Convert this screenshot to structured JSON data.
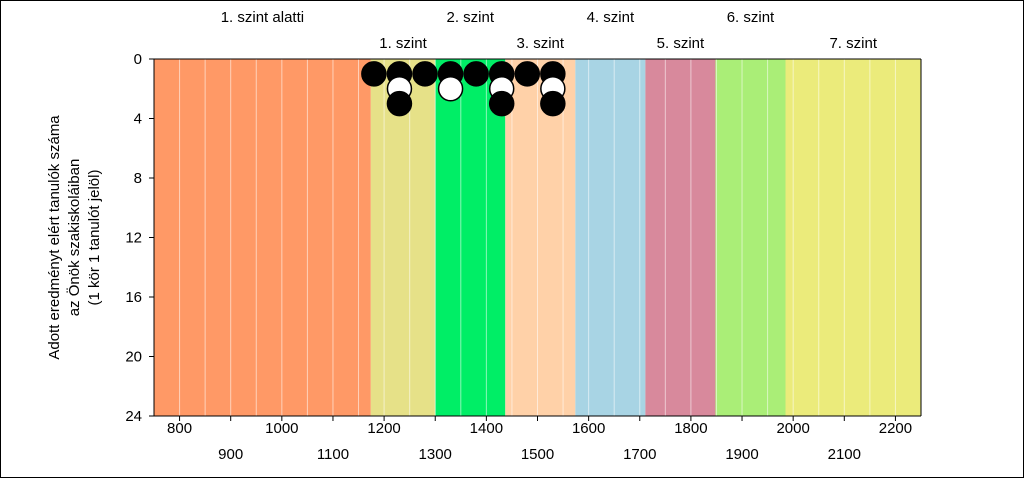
{
  "chart_data": {
    "type": "scatter",
    "ylabel_lines": [
      "Adott eredményt elért tanulók száma",
      "az Önök szakiskoláiban",
      "(1 kör 1 tanulót jelöl)"
    ],
    "xlim": [
      750,
      2250
    ],
    "ylim": [
      0,
      24
    ],
    "y_inverted": true,
    "y_ticks": [
      0,
      4,
      8,
      12,
      16,
      20,
      24
    ],
    "x_ticks_upper": [
      800,
      1000,
      1200,
      1400,
      1600,
      1800,
      2000,
      2200
    ],
    "x_ticks_lower": [
      900,
      1100,
      1300,
      1500,
      1700,
      1900,
      2100
    ],
    "levels": [
      {
        "label": "1. szint alatti",
        "from": 750,
        "to": 1174,
        "color": "#FF9966",
        "row": "top"
      },
      {
        "label": "1. szint",
        "from": 1174,
        "to": 1300,
        "color": "#E6E188",
        "row": "bottom"
      },
      {
        "label": "2. szint",
        "from": 1300,
        "to": 1437,
        "color": "#00EE66",
        "row": "top"
      },
      {
        "label": "3. szint",
        "from": 1437,
        "to": 1574,
        "color": "#FFD1A8",
        "row": "bottom"
      },
      {
        "label": "4. szint",
        "from": 1574,
        "to": 1711,
        "color": "#A8D4E4",
        "row": "top"
      },
      {
        "label": "5. szint",
        "from": 1711,
        "to": 1848,
        "color": "#D8899C",
        "row": "bottom"
      },
      {
        "label": "6. szint",
        "from": 1848,
        "to": 1985,
        "color": "#AAEE77",
        "row": "top"
      },
      {
        "label": "7. szint",
        "from": 1985,
        "to": 2250,
        "color": "#EBEB7B",
        "row": "bottom"
      }
    ],
    "points": [
      {
        "x": 1180,
        "y": 1,
        "fill": "black"
      },
      {
        "x": 1230,
        "y": 1,
        "fill": "black"
      },
      {
        "x": 1230,
        "y": 2,
        "fill": "white"
      },
      {
        "x": 1230,
        "y": 3,
        "fill": "black"
      },
      {
        "x": 1280,
        "y": 1,
        "fill": "black"
      },
      {
        "x": 1330,
        "y": 1,
        "fill": "black"
      },
      {
        "x": 1330,
        "y": 2,
        "fill": "white"
      },
      {
        "x": 1380,
        "y": 1,
        "fill": "black"
      },
      {
        "x": 1430,
        "y": 1,
        "fill": "black"
      },
      {
        "x": 1430,
        "y": 2,
        "fill": "white"
      },
      {
        "x": 1430,
        "y": 3,
        "fill": "black"
      },
      {
        "x": 1480,
        "y": 1,
        "fill": "black"
      },
      {
        "x": 1530,
        "y": 1,
        "fill": "black"
      },
      {
        "x": 1530,
        "y": 2,
        "fill": "white"
      },
      {
        "x": 1530,
        "y": 3,
        "fill": "black"
      }
    ]
  }
}
